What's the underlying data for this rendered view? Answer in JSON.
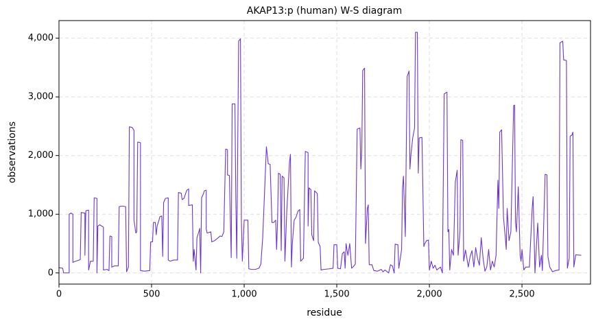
{
  "chart_data": {
    "type": "line",
    "title": "AKAP13:p (human) W-S diagram",
    "xlabel": "residue",
    "ylabel": "observations",
    "color": "#6a35d0",
    "grid": true,
    "xlim": [
      0,
      2870
    ],
    "ylim": [
      -190,
      4300
    ],
    "xticks": [
      0,
      500,
      {
        "value": 1000,
        "label": "1,000"
      },
      {
        "value": 1500,
        "label": "1,500"
      },
      {
        "value": 2000,
        "label": "2,000"
      },
      {
        "value": 2500,
        "label": "2,500"
      }
    ],
    "yticks": [
      0,
      {
        "value": 1000,
        "label": "1,000"
      },
      {
        "value": 2000,
        "label": "2,000"
      },
      {
        "value": 3000,
        "label": "3,000"
      },
      {
        "value": 4000,
        "label": "4,000"
      }
    ],
    "x": [
      0,
      20,
      25,
      55,
      55,
      65,
      75,
      75,
      90,
      110,
      115,
      120,
      140,
      140,
      145,
      160,
      160,
      170,
      185,
      190,
      205,
      205,
      210,
      220,
      240,
      240,
      260,
      270,
      275,
      285,
      285,
      300,
      320,
      325,
      340,
      360,
      365,
      375,
      380,
      395,
      405,
      405,
      415,
      420,
      425,
      440,
      440,
      460,
      490,
      495,
      505,
      510,
      520,
      525,
      530,
      540,
      545,
      555,
      560,
      565,
      575,
      590,
      590,
      600,
      620,
      640,
      645,
      660,
      665,
      675,
      690,
      700,
      700,
      720,
      725,
      730,
      740,
      745,
      755,
      760,
      765,
      770,
      780,
      785,
      795,
      795,
      800,
      820,
      825,
      840,
      860,
      870,
      880,
      890,
      900,
      910,
      910,
      920,
      930,
      935,
      950,
      955,
      960,
      970,
      980,
      985,
      990,
      1000,
      1020,
      1025,
      1040,
      1060,
      1080,
      1090,
      1100,
      1120,
      1130,
      1140,
      1150,
      1160,
      1170,
      1175,
      1180,
      1185,
      1195,
      1200,
      1205,
      1215,
      1220,
      1230,
      1245,
      1250,
      1255,
      1260,
      1270,
      1280,
      1290,
      1300,
      1305,
      1320,
      1330,
      1345,
      1345,
      1350,
      1360,
      1365,
      1375,
      1380,
      1395,
      1400,
      1410,
      1415,
      1430,
      1460,
      1480,
      1485,
      1500,
      1505,
      1520,
      1530,
      1540,
      1545,
      1550,
      1560,
      1570,
      1580,
      1590,
      1600,
      1610,
      1625,
      1630,
      1635,
      1640,
      1650,
      1655,
      1665,
      1670,
      1675,
      1690,
      1700,
      1720,
      1740,
      1750,
      1760,
      1780,
      1790,
      1800,
      1810,
      1815,
      1830,
      1835,
      1850,
      1855,
      1860,
      1870,
      1875,
      1880,
      1890,
      1895,
      1900,
      1910,
      1920,
      1925,
      1935,
      1940,
      1945,
      1960,
      1970,
      1975,
      1985,
      1995,
      2000,
      2010,
      2020,
      2030,
      2040,
      2060,
      2070,
      2080,
      2095,
      2100,
      2105,
      2110,
      2120,
      2130,
      2140,
      2150,
      2155,
      2165,
      2170,
      2180,
      2185,
      2195,
      2200,
      2210,
      2220,
      2230,
      2240,
      2250,
      2260,
      2270,
      2280,
      2290,
      2300,
      2310,
      2320,
      2330,
      2340,
      2350,
      2360,
      2370,
      2375,
      2380,
      2390,
      2400,
      2410,
      2415,
      2420,
      2430,
      2440,
      2450,
      2455,
      2460,
      2465,
      2470,
      2480,
      2490,
      2495,
      2500,
      2510,
      2520,
      2540,
      2555,
      2560,
      2565,
      2570,
      2585,
      2595,
      2605,
      2610,
      2625,
      2635,
      2640,
      2650,
      2665,
      2680,
      2700,
      2705,
      2720,
      2725,
      2740,
      2745,
      2755,
      2760,
      2770,
      2775,
      2780,
      2790,
      2820
    ],
    "values": [
      90,
      80,
      0,
      0,
      1000,
      1020,
      1000,
      180,
      200,
      220,
      230,
      1030,
      1020,
      300,
      1060,
      1070,
      50,
      200,
      200,
      1280,
      1270,
      0,
      800,
      820,
      780,
      50,
      60,
      40,
      630,
      620,
      100,
      120,
      120,
      1130,
      1140,
      1130,
      20,
      100,
      2490,
      2480,
      2430,
      900,
      680,
      700,
      2230,
      2220,
      40,
      30,
      40,
      530,
      530,
      860,
      860,
      650,
      800,
      900,
      960,
      970,
      280,
      1200,
      1270,
      1280,
      220,
      200,
      220,
      220,
      1370,
      1360,
      1250,
      1270,
      1410,
      1430,
      1150,
      1160,
      200,
      400,
      50,
      600,
      700,
      760,
      0,
      1280,
      1350,
      1400,
      1410,
      750,
      680,
      700,
      530,
      550,
      600,
      630,
      620,
      700,
      2110,
      2100,
      1670,
      1660,
      260,
      2880,
      2880,
      1240,
      250,
      3950,
      3990,
      880,
      200,
      900,
      900,
      70,
      60,
      60,
      80,
      150,
      600,
      2150,
      1860,
      1850,
      860,
      860,
      900,
      400,
      850,
      1700,
      1680,
      380,
      1650,
      1620,
      200,
      1050,
      1900,
      2020,
      100,
      500,
      900,
      950,
      1050,
      1080,
      200,
      250,
      2070,
      2050,
      800,
      1450,
      1420,
      650,
      550,
      1400,
      1350,
      520,
      450,
      50,
      60,
      70,
      80,
      480,
      480,
      80,
      70,
      330,
      360,
      80,
      500,
      300,
      500,
      80,
      110,
      150,
      2450,
      2470,
      1770,
      2100,
      3450,
      3490,
      500,
      1100,
      1160,
      140,
      140,
      40,
      30,
      60,
      20,
      50,
      0,
      140,
      120,
      0,
      490,
      480,
      80,
      400,
      1450,
      1650,
      620,
      2060,
      3350,
      3440,
      1770,
      2000,
      2300,
      2470,
      4100,
      4100,
      1700,
      2300,
      2310,
      450,
      500,
      550,
      560,
      50,
      200,
      80,
      130,
      50,
      100,
      0,
      3050,
      3080,
      700,
      740,
      50,
      400,
      300,
      1550,
      1750,
      300,
      700,
      2270,
      2260,
      200,
      390,
      300,
      100,
      280,
      380,
      100,
      430,
      250,
      130,
      600,
      250,
      30,
      100,
      400,
      50,
      200,
      100,
      300,
      1580,
      1100,
      2400,
      2440,
      950,
      600,
      400,
      1100,
      550,
      700,
      2130,
      2850,
      2860,
      860,
      700,
      1470,
      300,
      200,
      400,
      50,
      100,
      100,
      1100,
      1300,
      700,
      0,
      850,
      100,
      300,
      40,
      1680,
      1670,
      280,
      100,
      20,
      40,
      50,
      3920,
      3950,
      3630,
      3620,
      80,
      250,
      2330,
      2350,
      2400,
      100,
      310,
      300
    ]
  }
}
